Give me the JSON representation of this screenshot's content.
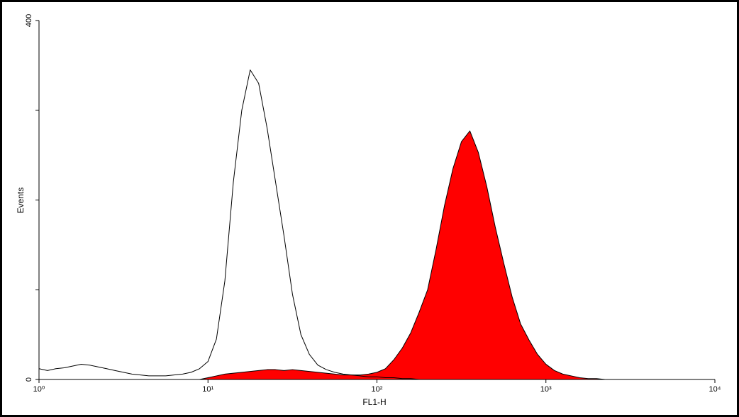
{
  "chart_data": {
    "type": "histogram-overlay",
    "xlabel": "FL1-H",
    "ylabel": "Events",
    "xscale": "log",
    "xlim": [
      1,
      10000
    ],
    "xticks": [
      {
        "value": 1,
        "label": "10⁰"
      },
      {
        "value": 10,
        "label": "10¹"
      },
      {
        "value": 100,
        "label": "10²"
      },
      {
        "value": 1000,
        "label": "10³"
      },
      {
        "value": 10000,
        "label": "10⁴"
      }
    ],
    "ylim": [
      0,
      400
    ],
    "yticks": [
      0,
      400
    ],
    "yminorticks": [
      100,
      200,
      300
    ],
    "x": [
      1,
      1.122,
      1.259,
      1.413,
      1.585,
      1.778,
      1.995,
      2.239,
      2.512,
      2.818,
      3.162,
      3.548,
      3.981,
      4.467,
      5.012,
      5.623,
      6.31,
      7.079,
      7.943,
      8.913,
      10,
      11.22,
      12.59,
      14.13,
      15.85,
      17.78,
      19.95,
      22.39,
      25.12,
      28.18,
      31.62,
      35.48,
      39.81,
      44.67,
      50.12,
      56.23,
      63.1,
      70.79,
      79.43,
      89.13,
      100,
      112.2,
      125.9,
      141.3,
      158.5,
      177.8,
      199.5,
      223.9,
      251.2,
      281.8,
      316.2,
      354.8,
      398.1,
      446.7,
      501.2,
      562.3,
      631,
      707.9,
      794.3,
      891.3,
      1000,
      1122,
      1259,
      1413,
      1585,
      1778,
      1995,
      2239,
      2512,
      2818,
      3162,
      3548,
      3981,
      4467,
      5012,
      5623,
      6310,
      7079,
      7943,
      8913,
      10000
    ],
    "series": [
      {
        "color": "#ff0000",
        "filled": true,
        "values": [
          0,
          0,
          0,
          0,
          0,
          0,
          0,
          0,
          0,
          0,
          0,
          0,
          0,
          0,
          0,
          0,
          0,
          0,
          0,
          0,
          2,
          4,
          6,
          7,
          8,
          9,
          10,
          11,
          11,
          10,
          11,
          10,
          9,
          8,
          7,
          6,
          5,
          5,
          5,
          6,
          8,
          12,
          22,
          35,
          52,
          75,
          100,
          145,
          194,
          235,
          265,
          277,
          253,
          215,
          170,
          130,
          92,
          62,
          44,
          28,
          17,
          10,
          6,
          4,
          2,
          1,
          1,
          0,
          0,
          0,
          0,
          0,
          0,
          0,
          0,
          0,
          0,
          0,
          0,
          0,
          0
        ]
      },
      {
        "color": "#000000",
        "filled": false,
        "values": [
          12,
          10,
          12,
          13,
          15,
          17,
          16,
          14,
          12,
          10,
          8,
          6,
          5,
          4,
          4,
          4,
          5,
          6,
          8,
          12,
          20,
          45,
          110,
          220,
          300,
          345,
          330,
          280,
          220,
          160,
          95,
          50,
          28,
          16,
          11,
          8,
          6,
          5,
          4,
          3,
          3,
          2,
          2,
          1,
          1,
          0,
          0,
          0,
          0,
          0,
          0,
          0,
          0,
          0,
          0,
          0,
          0,
          0,
          0,
          0,
          0,
          0,
          0,
          0,
          0,
          0,
          0,
          0,
          0,
          0,
          0,
          0,
          0,
          0,
          0,
          0,
          0,
          0,
          0,
          0,
          0
        ]
      }
    ]
  }
}
